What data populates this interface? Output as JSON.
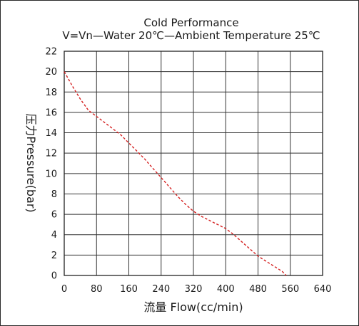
{
  "chart_data": {
    "type": "line",
    "title": "Cold Performance",
    "subtitle": "V=Vn—Water 20℃—Ambient Temperature 25℃",
    "xlabel": "流量  Flow(cc/min)",
    "ylabel": "压力Pressure(bar)",
    "xlim": [
      0,
      640
    ],
    "ylim": [
      0,
      22
    ],
    "x_ticks": [
      0,
      80,
      160,
      240,
      320,
      400,
      480,
      560,
      640
    ],
    "y_ticks": [
      0,
      2,
      4,
      6,
      8,
      10,
      12,
      14,
      16,
      18,
      20,
      22
    ],
    "x_tick_labels": [
      "0",
      "80",
      "160",
      "240",
      "320",
      "400",
      "480",
      "560",
      "640"
    ],
    "y_tick_labels": [
      "0",
      "2",
      "4",
      "6",
      "8",
      "10",
      "12",
      "14",
      "16",
      "18",
      "20",
      "22"
    ],
    "grid": true,
    "legend": "none",
    "series": [
      {
        "line_style": "dashed",
        "color": "#d42020",
        "x": [
          0,
          20,
          40,
          60,
          80,
          100,
          120,
          140,
          160,
          180,
          200,
          220,
          240,
          260,
          280,
          300,
          320,
          340,
          360,
          380,
          400,
          420,
          440,
          460,
          480,
          500,
          520,
          540,
          550
        ],
        "y": [
          20.0,
          18.6,
          17.3,
          16.2,
          15.6,
          15.0,
          14.4,
          13.8,
          13.0,
          12.2,
          11.4,
          10.5,
          9.6,
          8.7,
          7.8,
          7.0,
          6.3,
          5.8,
          5.4,
          5.0,
          4.6,
          4.0,
          3.3,
          2.6,
          1.9,
          1.4,
          0.9,
          0.4,
          0.0
        ]
      }
    ]
  }
}
